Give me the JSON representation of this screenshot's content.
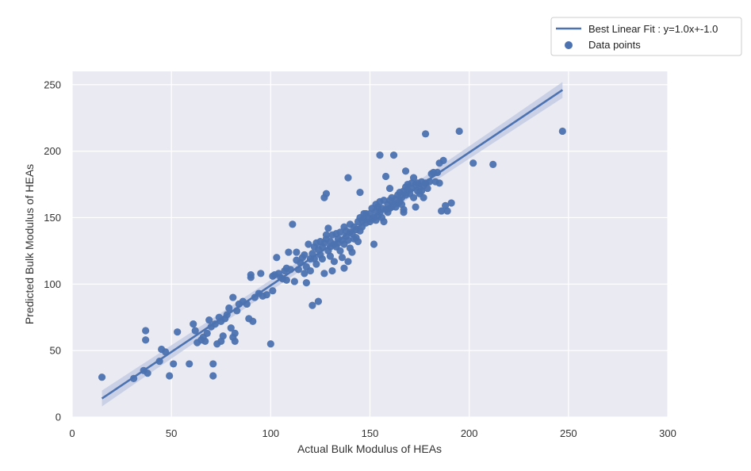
{
  "chart_data": {
    "type": "scatter",
    "xlabel": "Actual Bulk Modulus of HEAs",
    "ylabel": "Predicted Bulk Modulus of HEAs",
    "xlim": [
      0,
      300
    ],
    "ylim": [
      0,
      260
    ],
    "x_ticks": [
      "0",
      "50",
      "100",
      "150",
      "200",
      "250",
      "300"
    ],
    "y_ticks": [
      "0",
      "50",
      "100",
      "150",
      "200",
      "250"
    ],
    "grid": true,
    "legend_placement": "top-right",
    "colors": {
      "background": "#eaeaf2",
      "grid": "#ffffff",
      "series": "#4c72b0",
      "band": "#c2cbe2"
    },
    "legend": {
      "fit_label": "Best Linear Fit : y=1.0x+-1.0",
      "points_label": "Data points"
    },
    "fit": {
      "slope": 1.0,
      "intercept": -1.0,
      "x_range": [
        15,
        247
      ]
    },
    "points": [
      [
        15,
        30
      ],
      [
        31,
        29
      ],
      [
        36,
        35
      ],
      [
        37,
        65
      ],
      [
        37,
        58
      ],
      [
        38,
        33
      ],
      [
        44,
        42
      ],
      [
        45,
        51
      ],
      [
        47,
        49
      ],
      [
        49,
        31
      ],
      [
        51,
        40
      ],
      [
        53,
        64
      ],
      [
        59,
        40
      ],
      [
        61,
        70
      ],
      [
        62,
        65
      ],
      [
        63,
        56
      ],
      [
        65,
        58
      ],
      [
        66,
        60
      ],
      [
        67,
        57
      ],
      [
        68,
        63
      ],
      [
        69,
        73
      ],
      [
        70,
        68
      ],
      [
        71,
        40
      ],
      [
        71,
        31
      ],
      [
        72,
        70
      ],
      [
        73,
        55
      ],
      [
        74,
        75
      ],
      [
        75,
        57
      ],
      [
        75,
        72
      ],
      [
        76,
        61
      ],
      [
        77,
        74
      ],
      [
        78,
        77
      ],
      [
        79,
        82
      ],
      [
        80,
        67
      ],
      [
        81,
        60
      ],
      [
        81,
        90
      ],
      [
        82,
        57
      ],
      [
        82,
        63
      ],
      [
        83,
        80
      ],
      [
        84,
        85
      ],
      [
        86,
        87
      ],
      [
        88,
        85
      ],
      [
        89,
        74
      ],
      [
        90,
        105
      ],
      [
        90,
        107
      ],
      [
        91,
        72
      ],
      [
        92,
        90
      ],
      [
        94,
        93
      ],
      [
        95,
        108
      ],
      [
        96,
        91
      ],
      [
        98,
        92
      ],
      [
        100,
        55
      ],
      [
        101,
        106
      ],
      [
        101,
        95
      ],
      [
        102,
        107
      ],
      [
        103,
        120
      ],
      [
        104,
        108
      ],
      [
        105,
        105
      ],
      [
        106,
        104
      ],
      [
        107,
        110
      ],
      [
        108,
        103
      ],
      [
        108,
        112
      ],
      [
        109,
        124
      ],
      [
        110,
        111
      ],
      [
        111,
        145
      ],
      [
        112,
        102
      ],
      [
        113,
        118
      ],
      [
        113,
        124
      ],
      [
        114,
        111
      ],
      [
        115,
        116
      ],
      [
        116,
        120
      ],
      [
        117,
        122
      ],
      [
        117,
        108
      ],
      [
        118,
        101
      ],
      [
        118,
        113
      ],
      [
        119,
        130
      ],
      [
        120,
        110
      ],
      [
        120,
        119
      ],
      [
        121,
        123
      ],
      [
        121,
        84
      ],
      [
        122,
        119
      ],
      [
        122,
        128
      ],
      [
        123,
        115
      ],
      [
        123,
        131
      ],
      [
        124,
        126
      ],
      [
        124,
        87
      ],
      [
        125,
        122
      ],
      [
        125,
        132
      ],
      [
        126,
        128
      ],
      [
        126,
        119
      ],
      [
        127,
        131
      ],
      [
        127,
        108
      ],
      [
        127,
        165
      ],
      [
        128,
        134
      ],
      [
        128,
        168
      ],
      [
        128,
        137
      ],
      [
        129,
        125
      ],
      [
        129,
        142
      ],
      [
        130,
        121
      ],
      [
        130,
        132
      ],
      [
        130,
        128
      ],
      [
        131,
        137
      ],
      [
        131,
        110
      ],
      [
        132,
        130
      ],
      [
        132,
        117
      ],
      [
        133,
        138
      ],
      [
        133,
        128
      ],
      [
        134,
        134
      ],
      [
        134,
        131
      ],
      [
        135,
        125
      ],
      [
        135,
        139
      ],
      [
        136,
        133
      ],
      [
        136,
        120
      ],
      [
        137,
        143
      ],
      [
        137,
        130
      ],
      [
        137,
        112
      ],
      [
        138,
        136
      ],
      [
        138,
        140
      ],
      [
        139,
        133
      ],
      [
        139,
        180
      ],
      [
        139,
        117
      ],
      [
        140,
        145
      ],
      [
        140,
        139
      ],
      [
        140,
        127
      ],
      [
        141,
        138
      ],
      [
        141,
        124
      ],
      [
        142,
        143
      ],
      [
        142,
        134
      ],
      [
        143,
        141
      ],
      [
        143,
        135
      ],
      [
        144,
        132
      ],
      [
        144,
        147
      ],
      [
        145,
        150
      ],
      [
        145,
        140
      ],
      [
        145,
        169
      ],
      [
        146,
        143
      ],
      [
        146,
        148
      ],
      [
        147,
        153
      ],
      [
        147,
        150
      ],
      [
        148,
        146
      ],
      [
        148,
        153
      ],
      [
        149,
        150
      ],
      [
        150,
        147
      ],
      [
        150,
        153
      ],
      [
        151,
        149
      ],
      [
        151,
        157
      ],
      [
        152,
        130
      ],
      [
        152,
        150
      ],
      [
        153,
        155
      ],
      [
        153,
        148
      ],
      [
        153,
        160
      ],
      [
        154,
        151
      ],
      [
        154,
        158
      ],
      [
        155,
        162
      ],
      [
        155,
        197
      ],
      [
        155,
        154
      ],
      [
        156,
        150
      ],
      [
        156,
        157
      ],
      [
        157,
        163
      ],
      [
        157,
        147
      ],
      [
        158,
        156
      ],
      [
        158,
        181
      ],
      [
        159,
        160
      ],
      [
        159,
        154
      ],
      [
        160,
        163
      ],
      [
        160,
        157
      ],
      [
        160,
        172
      ],
      [
        161,
        158
      ],
      [
        161,
        165
      ],
      [
        162,
        197
      ],
      [
        162,
        160
      ],
      [
        163,
        164
      ],
      [
        163,
        158
      ],
      [
        164,
        167
      ],
      [
        164,
        161
      ],
      [
        165,
        162
      ],
      [
        165,
        169
      ],
      [
        166,
        165
      ],
      [
        166,
        160
      ],
      [
        167,
        170
      ],
      [
        167,
        156
      ],
      [
        167,
        154
      ],
      [
        168,
        173
      ],
      [
        168,
        167
      ],
      [
        168,
        185
      ],
      [
        169,
        171
      ],
      [
        169,
        175
      ],
      [
        170,
        168
      ],
      [
        171,
        176
      ],
      [
        171,
        172
      ],
      [
        172,
        165
      ],
      [
        172,
        180
      ],
      [
        173,
        175
      ],
      [
        173,
        158
      ],
      [
        174,
        176
      ],
      [
        174,
        170
      ],
      [
        175,
        168
      ],
      [
        175,
        172
      ],
      [
        176,
        170
      ],
      [
        176,
        177
      ],
      [
        177,
        165
      ],
      [
        177,
        174
      ],
      [
        178,
        213
      ],
      [
        178,
        176
      ],
      [
        179,
        172
      ],
      [
        180,
        177
      ],
      [
        181,
        183
      ],
      [
        182,
        184
      ],
      [
        183,
        177
      ],
      [
        184,
        184
      ],
      [
        185,
        191
      ],
      [
        185,
        176
      ],
      [
        186,
        155
      ],
      [
        187,
        193
      ],
      [
        188,
        159
      ],
      [
        189,
        155
      ],
      [
        191,
        161
      ],
      [
        195,
        215
      ],
      [
        202,
        191
      ],
      [
        212,
        190
      ],
      [
        247,
        215
      ]
    ]
  }
}
